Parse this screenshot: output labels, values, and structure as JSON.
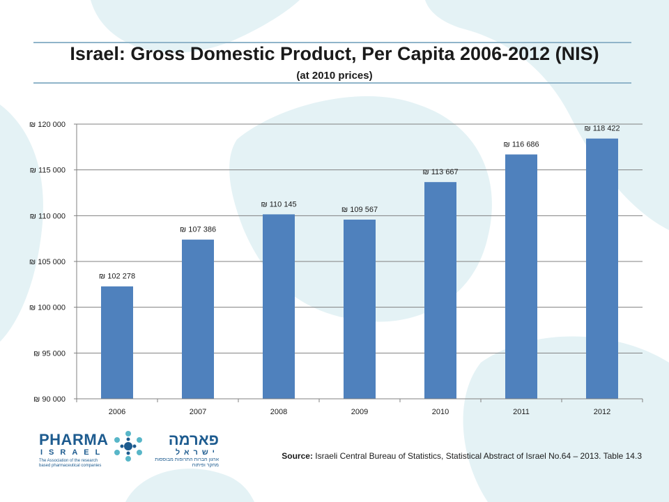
{
  "slide": {
    "title": "Israel: Gross Domestic Product, Per Capita 2006-2012 (NIS)",
    "subtitle": "(at 2010 prices)"
  },
  "source": {
    "label": "Source:",
    "text": "Israeli Central Bureau of Statistics, Statistical Abstract of Israel No.64 – 2013. Table 14.3"
  },
  "logo": {
    "word": "PHARMA",
    "word2": "ISRAEL",
    "tagline": "The Association of the research based pharmaceutical companies",
    "hebrew": "פארמה",
    "hebrew2": "ישראל",
    "hebrew_tagline": "ארגון חברות התרופות מבוססות מחקר ופיתוח"
  },
  "colors": {
    "bar": "#4f81bd",
    "background_shape": "#e4f2f5",
    "title_rule": "#8fb4c9",
    "logo": "#1d5b8f",
    "logo_accent": "#58b6c8"
  },
  "chart_data": {
    "type": "bar",
    "title": "",
    "xlabel": "",
    "ylabel": "",
    "categories": [
      "2006",
      "2007",
      "2008",
      "2009",
      "2010",
      "2011",
      "2012"
    ],
    "values": [
      102278,
      107386,
      110145,
      109567,
      113667,
      116686,
      118422
    ],
    "data_labels": [
      "₪ 102 278",
      "₪ 107 386",
      "₪ 110 145",
      "₪ 109 567",
      "₪ 113 667",
      "₪ 116 686",
      "₪ 118 422"
    ],
    "ylim": [
      90000,
      120000
    ],
    "yticks": [
      90000,
      95000,
      100000,
      105000,
      110000,
      115000,
      120000
    ],
    "ytick_labels": [
      "₪ 90 000",
      "₪ 95 000",
      "₪ 100 000",
      "₪ 105 000",
      "₪ 110 000",
      "₪ 115 000",
      "₪ 120 000"
    ],
    "grid": true,
    "legend": "none"
  }
}
